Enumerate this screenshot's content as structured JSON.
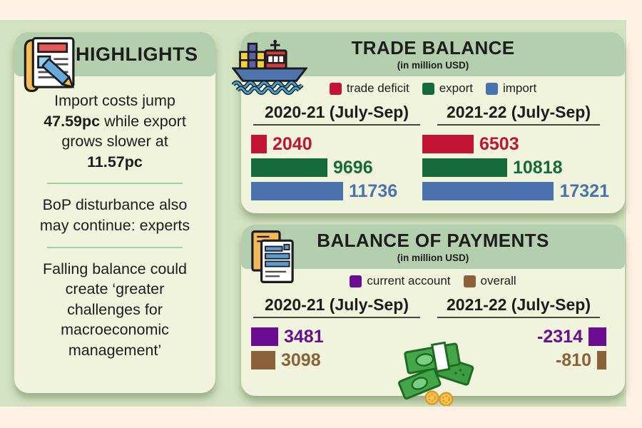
{
  "colors": {
    "page_bg": "#fdf2e3",
    "backdrop": "#d3e2c0",
    "band": "#b4cfae",
    "panel_bg": "#f1f4dc",
    "divider": "#a5cfa0",
    "header_underline": "#45463c",
    "text": "#1d1d1b"
  },
  "icons": {
    "highlights": "scroll-notes-icon",
    "trade": "cargo-ship-icon",
    "bop": "invoice-documents-icon",
    "money": "cash-stack-icon"
  },
  "highlights": {
    "title": "HIGHLIGHTS",
    "item1_pre": "Import costs jump ",
    "item1_bold1": "47.59pc",
    "item1_mid": " while export grows slower at ",
    "item1_bold2": "11.57pc",
    "item2": "BoP disturbance also may continue: experts",
    "item3": "Falling balance could create ‘greater challenges for macroeconomic management’"
  },
  "chart_data": [
    {
      "type": "bar",
      "orientation": "horizontal",
      "title": "TRADE BALANCE",
      "subtitle": "(in million USD)",
      "unit": "million USD",
      "categories": [
        "2020-21 (July-Sep)",
        "2021-22 (July-Sep)"
      ],
      "series": [
        {
          "name": "trade deficit",
          "color": "#c21334",
          "values": [
            2040,
            6503
          ]
        },
        {
          "name": "export",
          "color": "#156a39",
          "values": [
            9696,
            10818
          ]
        },
        {
          "name": "import",
          "color": "#4a72ae",
          "values": [
            11736,
            17321
          ]
        }
      ],
      "value_labels": true,
      "axis": "none",
      "legend_position": "top"
    },
    {
      "type": "bar",
      "orientation": "horizontal",
      "title": "BALANCE OF PAYMENTS",
      "subtitle": "(in million USD)",
      "unit": "million USD",
      "categories": [
        "2020-21 (July-Sep)",
        "2021-22 (July-Sep)"
      ],
      "series": [
        {
          "name": "current account",
          "color": "#6a0d92",
          "values": [
            3481,
            -2314
          ]
        },
        {
          "name": "overall",
          "color": "#8a6138",
          "values": [
            3098,
            -810
          ]
        }
      ],
      "value_labels": true,
      "axis": "none",
      "legend_position": "top"
    }
  ]
}
